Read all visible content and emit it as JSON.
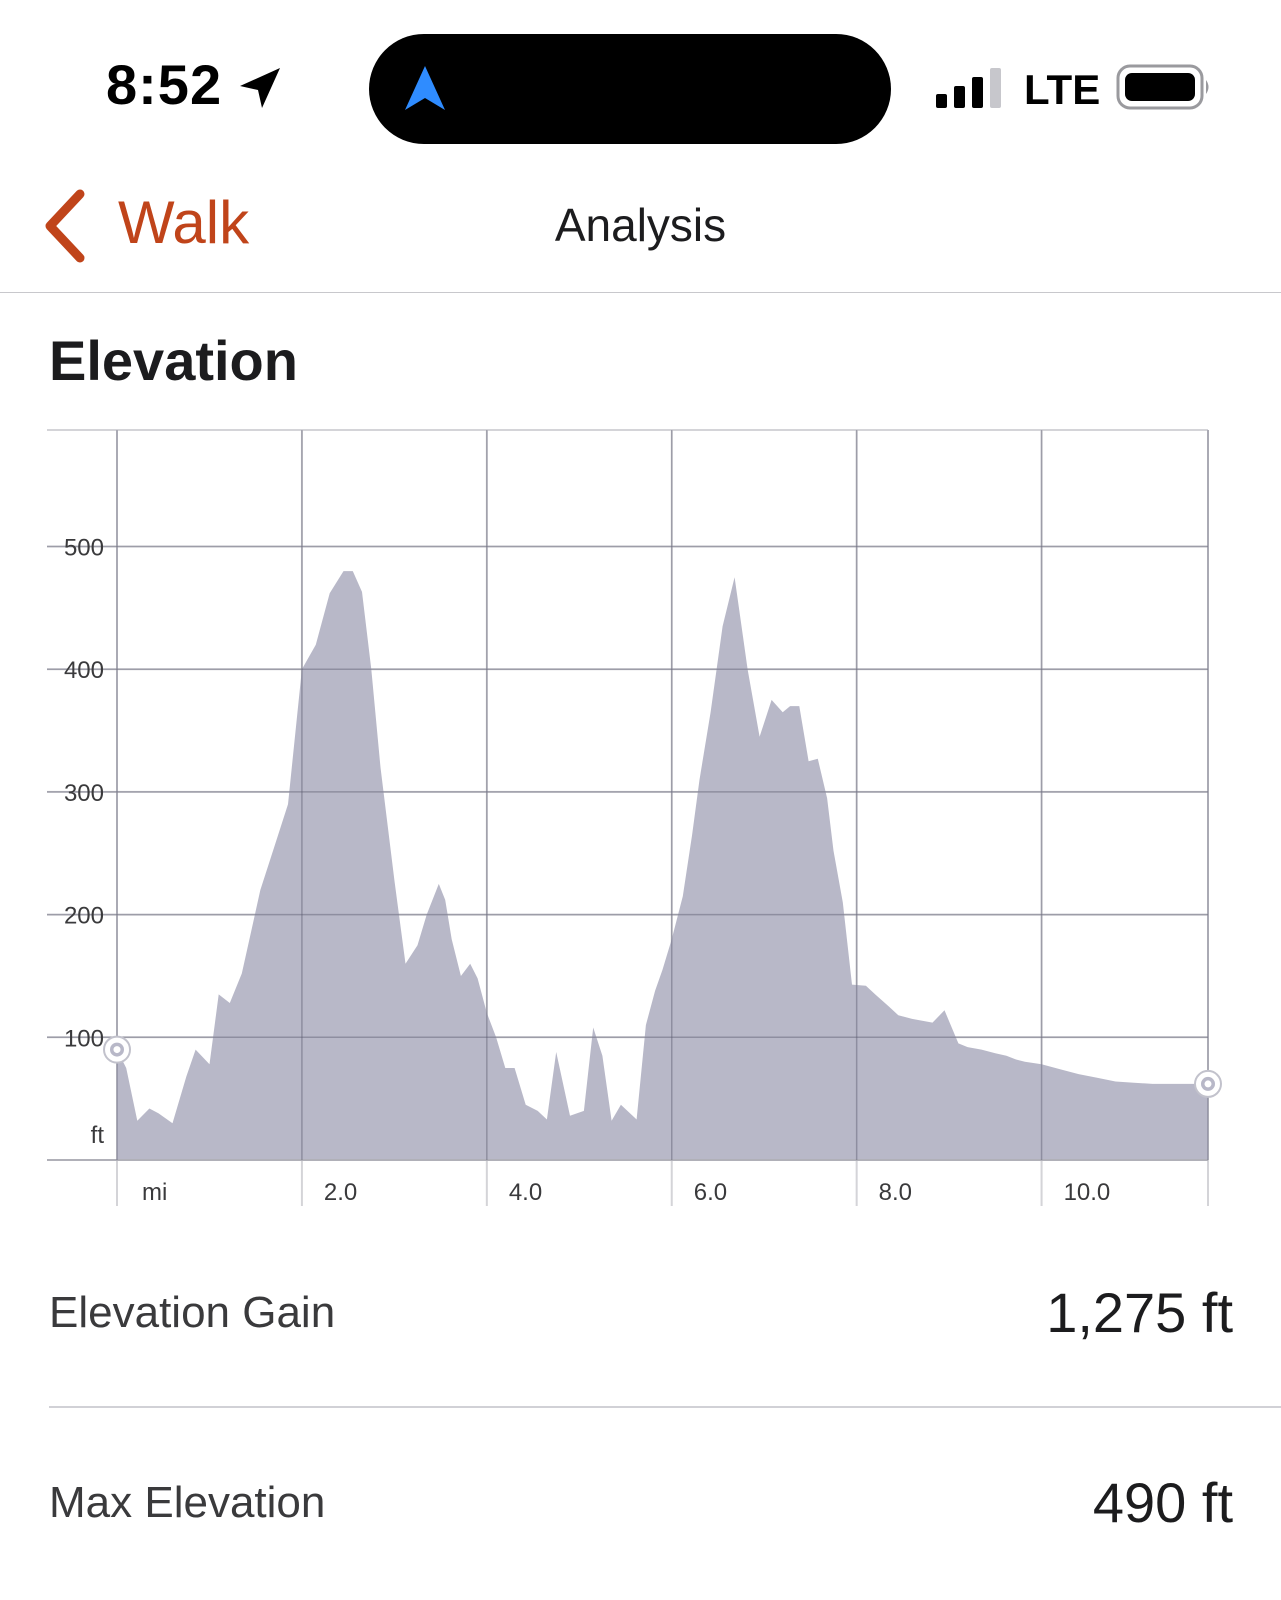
{
  "status_bar": {
    "time": "8:52",
    "network": "LTE",
    "signal_bars_filled": 3,
    "signal_bars_total": 4,
    "location_icon": "location-arrow-icon",
    "island_icon": "navigation-arrow-icon",
    "island_icon_color": "#2f8cff"
  },
  "nav": {
    "back_label": "Walk",
    "back_icon": "chevron-left-icon",
    "title": "Analysis",
    "accent_color": "#c0441a"
  },
  "section": {
    "title": "Elevation"
  },
  "chart_data": {
    "type": "area",
    "title": "",
    "xlabel": "mi",
    "ylabel": "ft",
    "x_unit": "mi",
    "y_unit": "ft",
    "xlim": [
      0,
      11.8
    ],
    "ylim": [
      0,
      595
    ],
    "x_ticks": [
      2,
      4,
      6,
      8,
      10
    ],
    "x_tick_labels": [
      "2.0",
      "4.0",
      "6.0",
      "8.0",
      "10.0"
    ],
    "y_ticks": [
      100,
      200,
      300,
      400,
      500
    ],
    "y_tick_labels": [
      "100",
      "200",
      "300",
      "400",
      "500"
    ],
    "grid": true,
    "fill_color": "#b8b8c8",
    "start_point": {
      "x": 0.0,
      "y": 90
    },
    "end_point": {
      "x": 11.8,
      "y": 62
    },
    "series": [
      {
        "x": [
          0.0,
          0.1,
          0.22,
          0.35,
          0.45,
          0.6,
          0.75,
          0.85,
          1.0,
          1.1,
          1.22,
          1.35,
          1.45,
          1.55,
          1.7,
          1.85,
          2.0,
          2.15,
          2.3,
          2.45,
          2.55,
          2.65,
          2.75,
          2.85,
          3.0,
          3.12,
          3.25,
          3.35,
          3.48,
          3.55,
          3.62,
          3.72,
          3.82,
          3.9,
          4.0,
          4.1,
          4.2,
          4.3,
          4.42,
          4.55,
          4.65,
          4.75,
          4.9,
          5.05,
          5.15,
          5.25,
          5.35,
          5.45,
          5.55,
          5.62,
          5.72,
          5.82,
          5.9,
          6.0,
          6.12,
          6.22,
          6.3,
          6.42,
          6.55,
          6.68,
          6.82,
          6.95,
          7.08,
          7.2,
          7.28,
          7.38,
          7.48,
          7.58,
          7.68,
          7.75,
          7.85,
          7.95,
          8.1,
          8.2,
          8.35,
          8.45,
          8.6,
          8.82,
          8.95,
          9.1,
          9.2,
          9.35,
          9.5,
          9.62,
          9.72,
          9.82,
          10.0,
          10.2,
          10.4,
          10.6,
          10.8,
          11.0,
          11.2,
          11.4,
          11.6,
          11.8
        ],
        "y": [
          90,
          75,
          32,
          42,
          38,
          30,
          68,
          90,
          78,
          135,
          128,
          152,
          186,
          220,
          255,
          290,
          400,
          420,
          462,
          480,
          480,
          463,
          400,
          320,
          228,
          160,
          175,
          200,
          225,
          212,
          180,
          150,
          160,
          148,
          120,
          100,
          75,
          75,
          45,
          40,
          33,
          88,
          36,
          40,
          108,
          85,
          32,
          45,
          38,
          33,
          110,
          138,
          155,
          180,
          215,
          265,
          310,
          365,
          435,
          475,
          400,
          345,
          375,
          365,
          370,
          370,
          325,
          327,
          295,
          252,
          210,
          143,
          142,
          135,
          125,
          118,
          115,
          112,
          122,
          95,
          92,
          90,
          87,
          85,
          82,
          80,
          78,
          74,
          70,
          67,
          64,
          63,
          62,
          62,
          62,
          62
        ]
      }
    ]
  },
  "stats": [
    {
      "label": "Elevation Gain",
      "value": "1,275 ft"
    },
    {
      "label": "Max Elevation",
      "value": "490 ft"
    }
  ]
}
